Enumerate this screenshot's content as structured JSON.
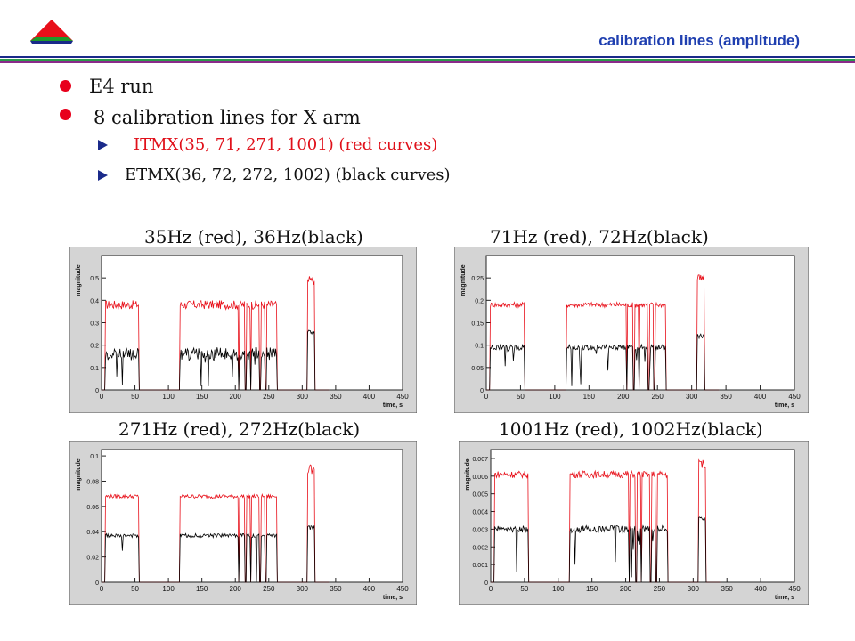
{
  "header": {
    "title": "calibration lines (amplitude)"
  },
  "bullets": [
    {
      "text": "E4 run"
    },
    {
      "text": "8 calibration lines for X arm"
    }
  ],
  "sub_bullets": [
    {
      "text": "ITMX(35, 71, 271, 1001) (red curves)",
      "color": "#e0101a"
    },
    {
      "text": "ETMX(36, 72, 272, 1002) (black curves)",
      "color": "#111111"
    }
  ],
  "colors": {
    "red_series": "#e8101a",
    "black_series": "#000000",
    "frame_bg": "#d4d4d4",
    "accent_blue": "#1f3fb0"
  },
  "chart_data": [
    {
      "type": "line",
      "caption": "35Hz (red), 36Hz(black)",
      "ylabel": "magnitude",
      "xlabel": "time, s",
      "xlim": [
        0,
        450
      ],
      "ylim": [
        0,
        0.6
      ],
      "xticks": [
        0,
        50,
        100,
        150,
        200,
        250,
        300,
        350,
        400,
        450
      ],
      "yticks": [
        0,
        0.1,
        0.2,
        0.3,
        0.4,
        0.5
      ],
      "ytick_labels": [
        "0",
        "0.1",
        "0.2",
        "0.3",
        "0.4",
        "0.5"
      ],
      "series": [
        {
          "color": "red",
          "level": 0.38,
          "noise": 0.02,
          "spike": 0.51
        },
        {
          "color": "black",
          "level": 0.16,
          "noise": 0.03,
          "spike": 0.27
        }
      ]
    },
    {
      "type": "line",
      "caption": "71Hz (red), 72Hz(black)",
      "ylabel": "magnitude",
      "xlabel": "time, s",
      "xlim": [
        0,
        450
      ],
      "ylim": [
        0,
        0.3
      ],
      "xticks": [
        0,
        50,
        100,
        150,
        200,
        250,
        300,
        350,
        400,
        450
      ],
      "yticks": [
        0,
        0.05,
        0.1,
        0.15,
        0.2,
        0.25
      ],
      "ytick_labels": [
        "0",
        "0.05",
        "0.1",
        "0.15",
        "0.2",
        "0.25"
      ],
      "series": [
        {
          "color": "red",
          "level": 0.19,
          "noise": 0.006,
          "spike": 0.26
        },
        {
          "color": "black",
          "level": 0.095,
          "noise": 0.006,
          "spike": 0.125
        }
      ]
    },
    {
      "type": "line",
      "caption": "271Hz (red), 272Hz(black)",
      "ylabel": "magnitude",
      "xlabel": "time, s",
      "xlim": [
        0,
        450
      ],
      "ylim": [
        0,
        0.105
      ],
      "xticks": [
        0,
        50,
        100,
        150,
        200,
        250,
        300,
        350,
        400,
        450
      ],
      "yticks": [
        0,
        0.02,
        0.04,
        0.06,
        0.08,
        0.1
      ],
      "ytick_labels": [
        "0",
        "0.02",
        "0.04",
        "0.06",
        "0.08",
        "0.1"
      ],
      "series": [
        {
          "color": "red",
          "level": 0.068,
          "noise": 0.0015,
          "spike": 0.093
        },
        {
          "color": "black",
          "level": 0.037,
          "noise": 0.0015,
          "spike": 0.045
        }
      ]
    },
    {
      "type": "line",
      "caption": "1001Hz (red), 1002Hz(black)",
      "ylabel": "magnitude",
      "xlabel": "time, s",
      "xlim": [
        0,
        450
      ],
      "ylim": [
        0,
        0.0075
      ],
      "xticks": [
        0,
        50,
        100,
        150,
        200,
        250,
        300,
        350,
        400,
        450
      ],
      "yticks": [
        0,
        0.001,
        0.002,
        0.003,
        0.004,
        0.005,
        0.006,
        0.007
      ],
      "ytick_labels": [
        "0",
        "0.001",
        "0.002",
        "0.003",
        "0.004",
        "0.005",
        "0.006",
        "0.007"
      ],
      "series": [
        {
          "color": "red",
          "level": 0.0061,
          "noise": 0.0002,
          "spike": 0.007
        },
        {
          "color": "black",
          "level": 0.003,
          "noise": 0.0002,
          "spike": 0.0037
        }
      ]
    }
  ]
}
